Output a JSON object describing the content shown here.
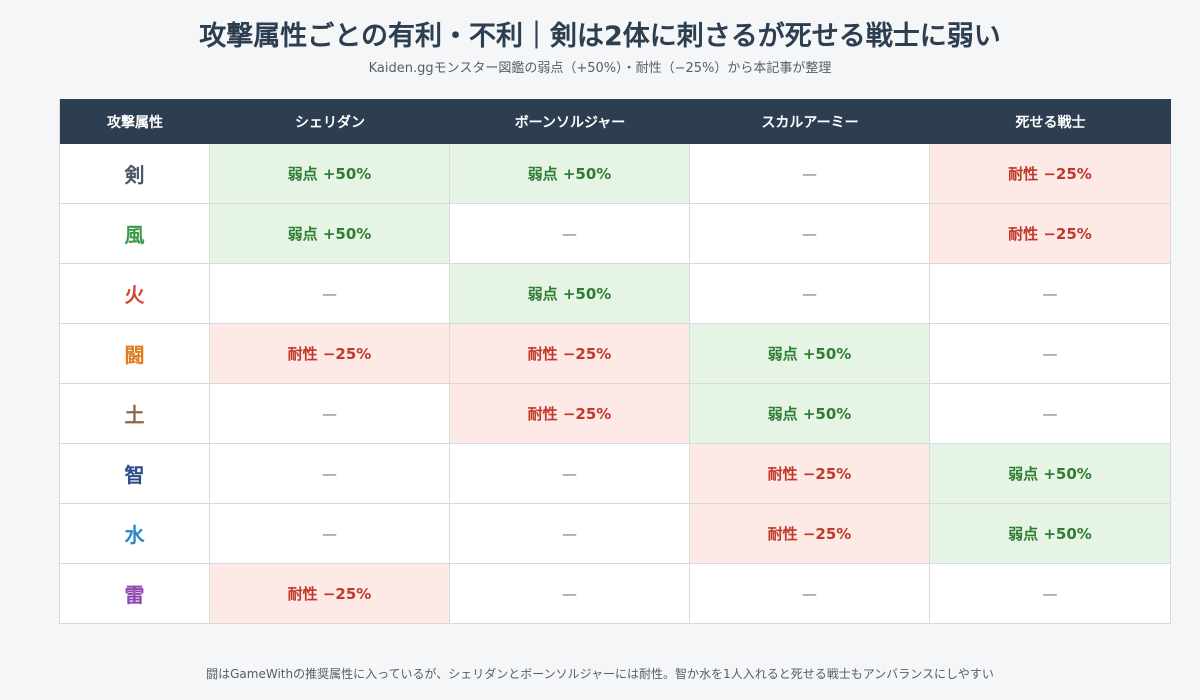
{
  "title": "攻撃属性ごとの有利・不利｜剣は2体に刺さるが死せる戦士に弱い",
  "subtitle": "Kaiden.ggモンスター図鑑の弱点（+50%）・耐性（−25%）から本記事が整理",
  "note": "闘はGameWithの推奨属性に入っているが、シェリダンとボーンソルジャーには耐性。智か水を1人入れると死せる戦士もアンバランスにしやすい",
  "colors": {
    "header_bg": "#2c3e50",
    "weak_bg": "#e6f4e6",
    "weak_text": "#2e7d32",
    "resist_bg": "#fde9e6",
    "resist_text": "#c0392b"
  },
  "chart_data": {
    "type": "table",
    "columns": [
      "攻撃属性",
      "シェリダン",
      "ボーンソルジャー",
      "スカルアーミー",
      "死せる戦士"
    ],
    "rows": [
      {
        "attribute": "剣",
        "color": "#4a5568",
        "cells": [
          "弱点 +50%",
          "弱点 +50%",
          "—",
          "耐性 −25%"
        ],
        "kinds": [
          "weak",
          "weak",
          "none",
          "resist"
        ]
      },
      {
        "attribute": "風",
        "color": "#3e9a4a",
        "cells": [
          "弱点 +50%",
          "—",
          "—",
          "耐性 −25%"
        ],
        "kinds": [
          "weak",
          "none",
          "none",
          "resist"
        ]
      },
      {
        "attribute": "火",
        "color": "#d64533",
        "cells": [
          "—",
          "弱点 +50%",
          "—",
          "—"
        ],
        "kinds": [
          "none",
          "weak",
          "none",
          "none"
        ]
      },
      {
        "attribute": "闘",
        "color": "#e07b1f",
        "cells": [
          "耐性 −25%",
          "耐性 −25%",
          "弱点 +50%",
          "—"
        ],
        "kinds": [
          "resist",
          "resist",
          "weak",
          "none"
        ]
      },
      {
        "attribute": "土",
        "color": "#8a6a4a",
        "cells": [
          "—",
          "耐性 −25%",
          "弱点 +50%",
          "—"
        ],
        "kinds": [
          "none",
          "resist",
          "weak",
          "none"
        ]
      },
      {
        "attribute": "智",
        "color": "#2d4a8c",
        "cells": [
          "—",
          "—",
          "耐性 −25%",
          "弱点 +50%"
        ],
        "kinds": [
          "none",
          "none",
          "resist",
          "weak"
        ]
      },
      {
        "attribute": "水",
        "color": "#2a86c8",
        "cells": [
          "—",
          "—",
          "耐性 −25%",
          "弱点 +50%"
        ],
        "kinds": [
          "none",
          "none",
          "resist",
          "weak"
        ]
      },
      {
        "attribute": "雷",
        "color": "#8e44ad",
        "cells": [
          "耐性 −25%",
          "—",
          "—",
          "—"
        ],
        "kinds": [
          "resist",
          "none",
          "none",
          "none"
        ]
      }
    ]
  }
}
